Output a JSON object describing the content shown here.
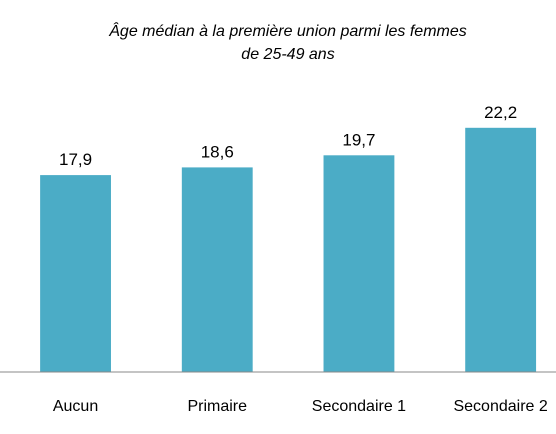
{
  "chart_data": {
    "type": "bar",
    "title": "Âge médian à la première union parmi les femmes de 25-49 ans",
    "categories": [
      "Aucun",
      "Primaire",
      "Secondaire 1",
      "Secondaire 2"
    ],
    "values": [
      17.9,
      18.6,
      19.7,
      22.2
    ],
    "value_labels": [
      "17,9",
      "18,6",
      "19,7",
      "22,2"
    ],
    "color": "#4bacc6",
    "ylim": [
      0,
      25
    ]
  }
}
